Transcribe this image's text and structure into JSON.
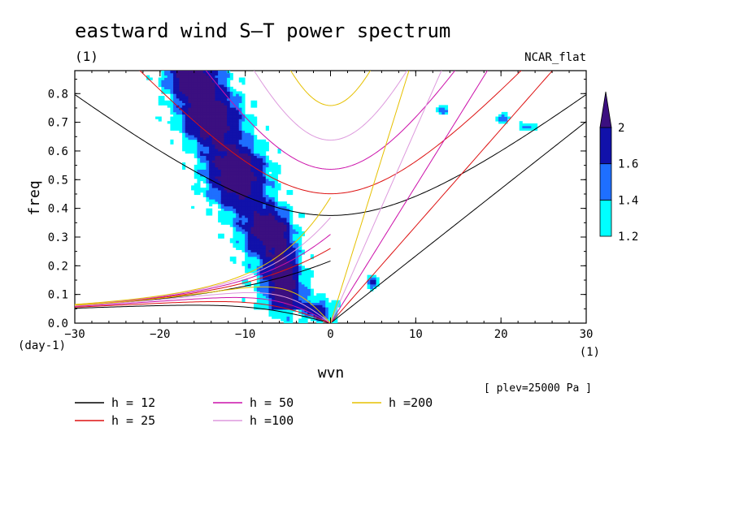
{
  "chart_data": {
    "type": "contour",
    "title": "eastward wind S–T power spectrum",
    "top_left_label": "(1)",
    "top_right_label": "NCAR_flat",
    "xlabel": "wvn",
    "ylabel": "freq",
    "x_unit_label": "(1)",
    "y_unit_label": "(day-1)",
    "xlim": [
      -30,
      30
    ],
    "ylim": [
      0,
      0.88
    ],
    "x_ticks": [
      -30,
      -20,
      -10,
      0,
      10,
      20,
      30
    ],
    "x_tick_labels": [
      "−30",
      "−20",
      "−10",
      "0",
      "10",
      "20",
      "30"
    ],
    "y_ticks": [
      0.0,
      0.1,
      0.2,
      0.3,
      0.4,
      0.5,
      0.6,
      0.7,
      0.8
    ],
    "y_tick_labels": [
      "0.0",
      "0.1",
      "0.2",
      "0.3",
      "0.4",
      "0.5",
      "0.6",
      "0.7",
      "0.8"
    ],
    "plev_note": "[ plev=25000 Pa ]",
    "colorbar": {
      "levels": [
        1.2,
        1.4,
        1.6,
        2
      ],
      "level_labels": [
        "1.2",
        "1.4",
        "1.6",
        "2"
      ],
      "colors": [
        "#00ffff",
        "#1e6fff",
        "#1111aa",
        "#3b0f80"
      ]
    },
    "dispersion_curves": [
      {
        "h": 12,
        "label": "h = 12",
        "color": "#000000"
      },
      {
        "h": 25,
        "label": "h = 25",
        "color": "#dd1111"
      },
      {
        "h": 50,
        "label": "h = 50",
        "color": "#cc11aa"
      },
      {
        "h": 100,
        "label": "h =100",
        "color": "#dd99dd"
      },
      {
        "h": 200,
        "label": "h =200",
        "color": "#e6c000"
      }
    ],
    "curve_families": [
      "kelvin",
      "n1_westward_inertia_gravity",
      "n1_mixed_rossby_gravity",
      "n1_rossby"
    ],
    "spectral_peaks": [
      {
        "k": -16,
        "f": 0.85,
        "sx": 2.0,
        "sy": 0.05,
        "a": 0.9
      },
      {
        "k": -14,
        "f": 0.72,
        "sx": 2.4,
        "sy": 0.06,
        "a": 0.95
      },
      {
        "k": -11,
        "f": 0.52,
        "sx": 2.4,
        "sy": 0.07,
        "a": 1.0
      },
      {
        "k": -7,
        "f": 0.33,
        "sx": 1.6,
        "sy": 0.05,
        "a": 0.95
      },
      {
        "k": -5.5,
        "f": 0.16,
        "sx": 1.2,
        "sy": 0.09,
        "a": 0.9
      },
      {
        "k": -1.5,
        "f": 0.04,
        "sx": 1.3,
        "sy": 0.025,
        "a": 0.8
      },
      {
        "k": 5,
        "f": 0.14,
        "sx": 0.5,
        "sy": 0.02,
        "a": 0.6
      },
      {
        "k": 20,
        "f": 0.71,
        "sx": 0.6,
        "sy": 0.012,
        "a": 0.6
      },
      {
        "k": 23,
        "f": 0.68,
        "sx": 0.6,
        "sy": 0.01,
        "a": 0.55
      },
      {
        "k": 13,
        "f": 0.74,
        "sx": 0.6,
        "sy": 0.012,
        "a": 0.5
      }
    ]
  }
}
